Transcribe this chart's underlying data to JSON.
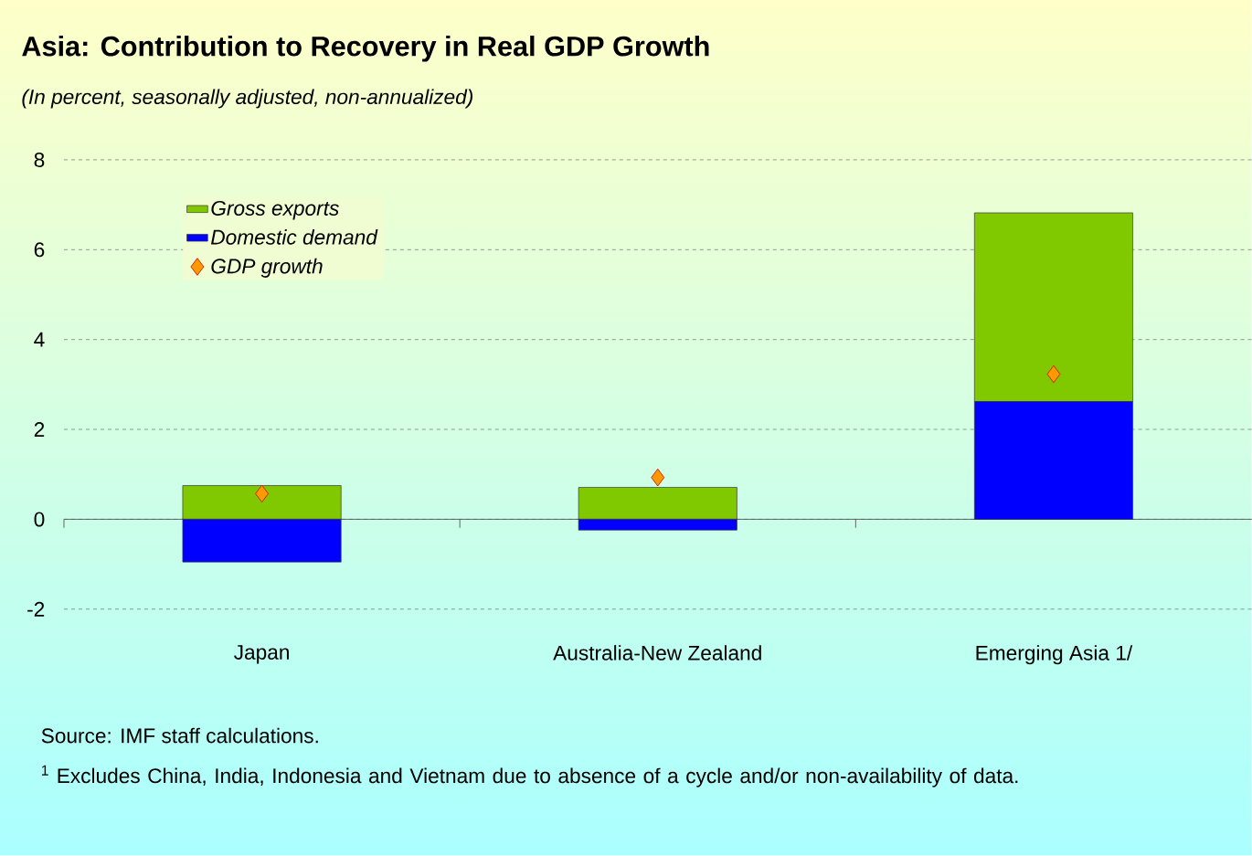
{
  "chart_data": {
    "type": "bar",
    "title": "Asia: Contribution to Recovery in Real GDP Growth",
    "subtitle": "(In percent, seasonally adjusted, non-annualized)",
    "categories": [
      "Japan",
      "Australia-New Zealand",
      "Emerging Asia 1/"
    ],
    "stacked": true,
    "series": [
      {
        "name": "Domestic demand",
        "color": "#0000ff",
        "values": [
          -0.95,
          -0.24,
          2.62
        ]
      },
      {
        "name": "Gross exports",
        "color": "#80c800",
        "values": [
          0.75,
          0.71,
          4.2
        ]
      },
      {
        "name": "GDP growth",
        "type": "scatter",
        "marker": "diamond",
        "color": "#ff9900",
        "values": [
          0.57,
          0.93,
          3.23
        ]
      }
    ],
    "ylim": [
      -2,
      8
    ],
    "yticks": [
      -2,
      0,
      2,
      4,
      6,
      8
    ],
    "grid": "y",
    "legend": "top left",
    "annotations": [
      "Source: IMF staff calculations.",
      "$^{1}$ Excludes China, India, Indonesia and Vietnam due to absence of a cycle and/or non-availability of data."
    ]
  }
}
